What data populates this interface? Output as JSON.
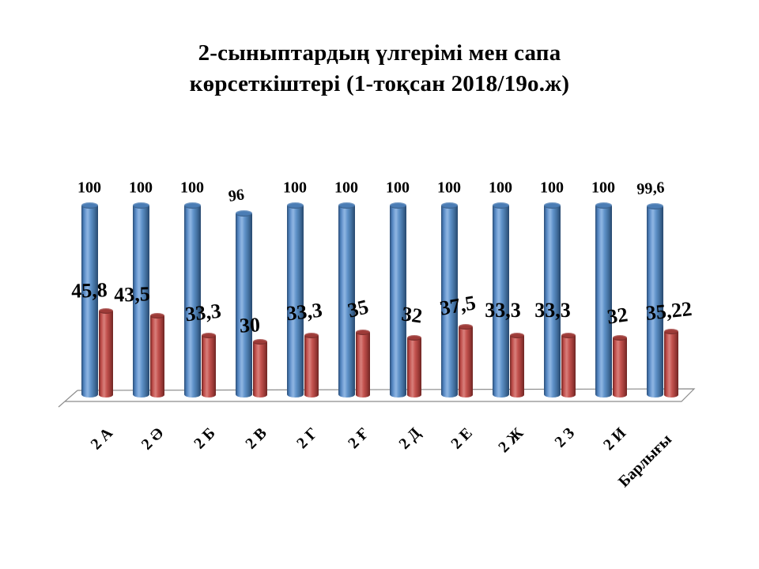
{
  "title": {
    "line1": "2-сыныптардың үлгерімі мен сапа",
    "line2": "көрсеткіштері (1-тоқсан 2018/19о.ж)"
  },
  "chart_data": {
    "type": "bar",
    "subtype": "3d-cylinder",
    "title": "2-сыныптардың үлгерімі мен сапа көрсеткіштері (1-тоқсан 2018/19о.ж)",
    "categories": [
      "2 А",
      "2 Ә",
      "2 Б",
      "2 В",
      "2 Г",
      "2 Ғ",
      "2 Д",
      "2 Е",
      "2 Ж",
      "2 З",
      "2 И",
      "Барлығы"
    ],
    "series": [
      {
        "name": "series-1-blue",
        "color": "#4F81BD",
        "values": [
          100,
          100,
          100,
          96,
          100,
          100,
          100,
          100,
          100,
          100,
          100,
          99.6
        ],
        "labels": [
          "100",
          "100",
          "100",
          "96",
          "100",
          "100",
          "100",
          "100",
          "100",
          "100",
          "100",
          "99,6"
        ]
      },
      {
        "name": "series-2-red",
        "color": "#C0504D",
        "values": [
          45.8,
          43.5,
          33.3,
          30,
          33.3,
          35,
          32,
          37.5,
          33.3,
          33.3,
          32,
          35.22
        ],
        "labels": [
          "45,8",
          "43,5",
          "33,3",
          "30",
          "33,3",
          "35",
          "32",
          "37,5",
          "33,3",
          "33,3",
          "32",
          "35,22"
        ]
      }
    ],
    "ylim": [
      0,
      100
    ],
    "xlabel": "",
    "ylabel": "",
    "legend": "none",
    "gridlines": false,
    "background": "#FFFFFF",
    "floor_line_color": "#8C8C8C"
  }
}
